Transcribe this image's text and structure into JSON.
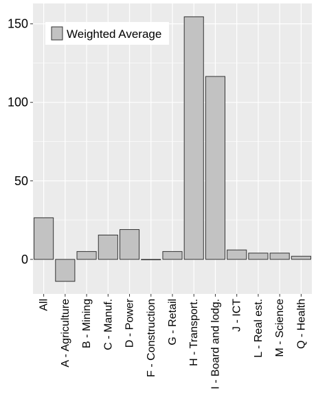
{
  "chart_data": {
    "type": "bar",
    "categories": [
      "All",
      "A - Agriculture",
      "B - Mining",
      "C - Manuf.",
      "D - Power",
      "F - Construction",
      "G - Retail",
      "H - Transport.",
      "I - Board and lodg.",
      "J - ICT",
      "L - Real est.",
      "M - Science",
      "Q - Health"
    ],
    "series": [
      {
        "name": "Weighted Average",
        "values": [
          26.5,
          -14,
          5,
          15.5,
          19,
          0,
          5,
          154.5,
          116.5,
          6,
          4,
          4,
          2
        ]
      }
    ],
    "yticks": [
      0,
      50,
      100,
      150
    ],
    "ylim": [
      -22,
      163
    ],
    "grid": true,
    "legend_position": "top-left",
    "colors": {
      "panel": "#ebebeb",
      "gridline": "#ffffff",
      "bar_fill": "#c2c2c2",
      "bar_stroke": "#333333"
    }
  }
}
